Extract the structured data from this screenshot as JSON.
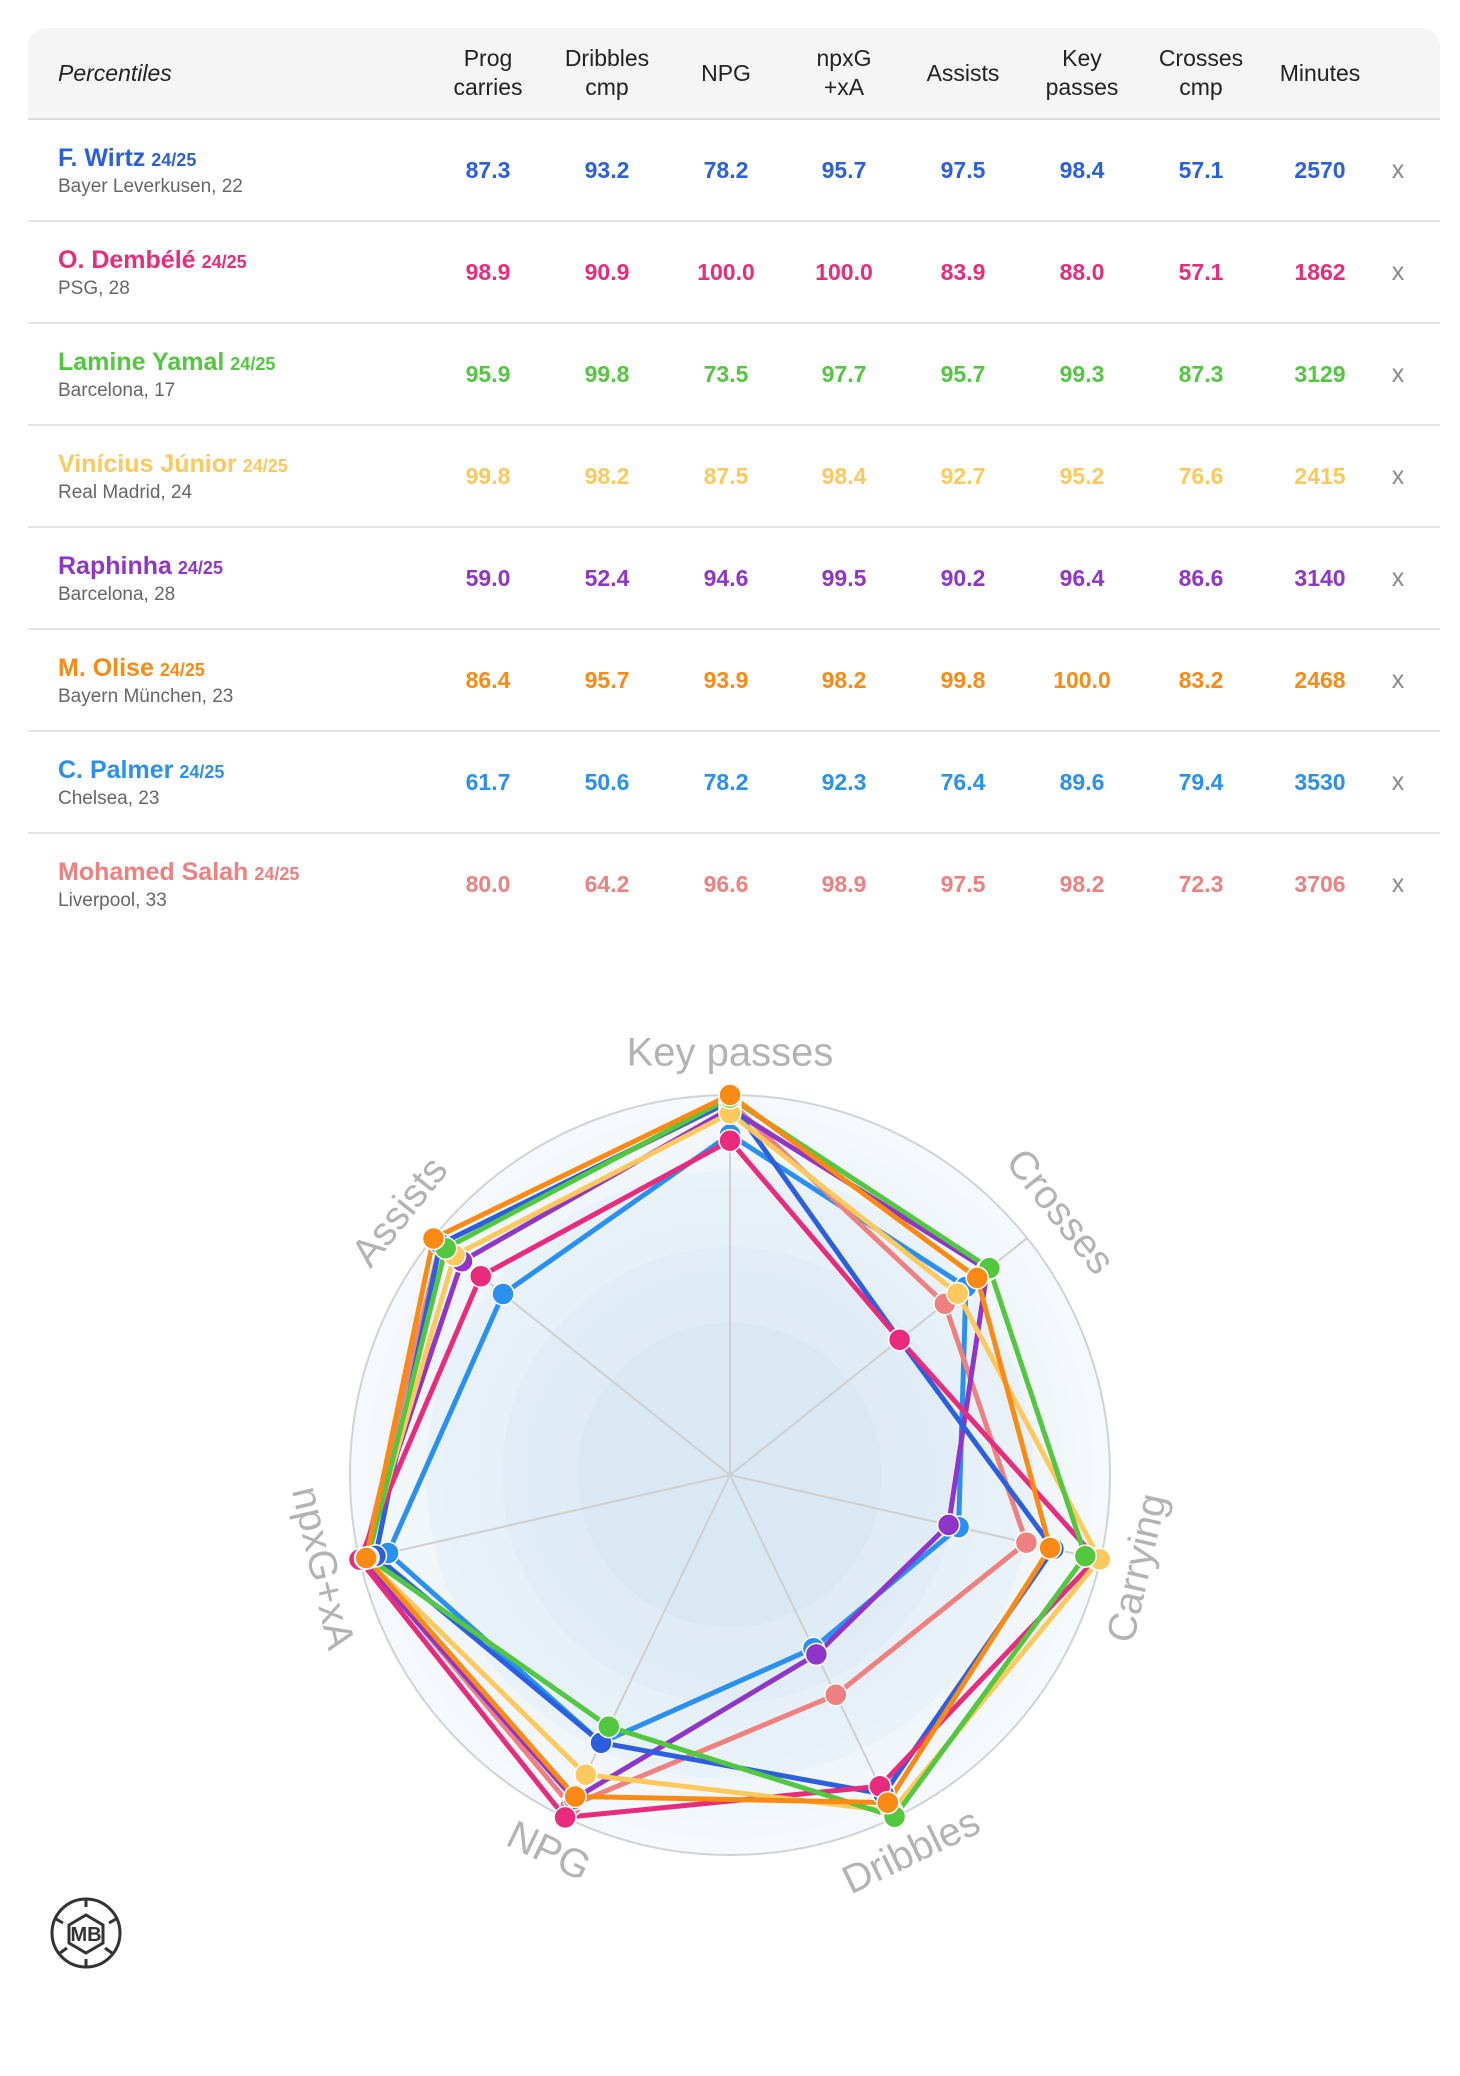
{
  "table": {
    "header_label": "Percentiles",
    "columns": [
      "Prog\ncarries",
      "Dribbles\ncmp",
      "NPG",
      "npxG\n+xA",
      "Assists",
      "Key\npasses",
      "Crosses\ncmp",
      "Minutes"
    ],
    "remove_label": "x",
    "players": [
      {
        "name": "F. Wirtz",
        "season": "24/25",
        "club": "Bayer Leverkusen, 22",
        "color": "#2b5fe0",
        "values": [
          "87.3",
          "93.2",
          "78.2",
          "95.7",
          "97.5",
          "98.4",
          "57.1",
          "2570"
        ]
      },
      {
        "name": "O. Dembélé",
        "season": "24/25",
        "club": "PSG, 28",
        "color": "#e82b7c",
        "values": [
          "98.9",
          "90.9",
          "100.0",
          "100.0",
          "83.9",
          "88.0",
          "57.1",
          "1862"
        ]
      },
      {
        "name": "Lamine Yamal",
        "season": "24/25",
        "club": "Barcelona, 17",
        "color": "#52c73f",
        "values": [
          "95.9",
          "99.8",
          "73.5",
          "97.7",
          "95.7",
          "99.3",
          "87.3",
          "3129"
        ]
      },
      {
        "name": "Vinícius Júnior",
        "season": "24/25",
        "club": "Real Madrid, 24",
        "color": "#fdc85c",
        "values": [
          "99.8",
          "98.2",
          "87.5",
          "98.4",
          "92.7",
          "95.2",
          "76.6",
          "2415"
        ]
      },
      {
        "name": "Raphinha",
        "season": "24/25",
        "club": "Barcelona, 28",
        "color": "#8f36c8",
        "values": [
          "59.0",
          "52.4",
          "94.6",
          "99.5",
          "90.2",
          "96.4",
          "86.6",
          "3140"
        ]
      },
      {
        "name": "M. Olise",
        "season": "24/25",
        "club": "Bayern München, 23",
        "color": "#fb8a14",
        "values": [
          "86.4",
          "95.7",
          "93.9",
          "98.2",
          "99.8",
          "100.0",
          "83.2",
          "2468"
        ]
      },
      {
        "name": "C. Palmer",
        "season": "24/25",
        "club": "Chelsea, 23",
        "color": "#2a90ef",
        "values": [
          "61.7",
          "50.6",
          "78.2",
          "92.3",
          "76.4",
          "89.6",
          "79.4",
          "3530"
        ]
      },
      {
        "name": "Mohamed Salah",
        "season": "24/25",
        "club": "Liverpool, 33",
        "color": "#ef8080",
        "values": [
          "80.0",
          "64.2",
          "96.6",
          "98.9",
          "97.5",
          "98.2",
          "72.3",
          "3706"
        ]
      }
    ]
  },
  "chart_data": {
    "type": "radar",
    "axes": [
      "Key passes",
      "Crosses",
      "Carrying",
      "Dribbles",
      "NPG",
      "npxG+xA",
      "Assists"
    ],
    "range": [
      0,
      100
    ],
    "series": [
      {
        "name": "F. Wirtz",
        "color": "#2b5fe0",
        "values": [
          98.4,
          57.1,
          87.3,
          93.2,
          78.2,
          95.7,
          97.5
        ]
      },
      {
        "name": "O. Dembélé",
        "color": "#e82b7c",
        "values": [
          88.0,
          57.1,
          98.9,
          90.9,
          100.0,
          100.0,
          83.9
        ]
      },
      {
        "name": "Lamine Yamal",
        "color": "#52c73f",
        "values": [
          99.3,
          87.3,
          95.9,
          99.8,
          73.5,
          97.7,
          95.7
        ]
      },
      {
        "name": "Vinícius Júnior",
        "color": "#fdc85c",
        "values": [
          95.2,
          76.6,
          99.8,
          98.2,
          87.5,
          98.4,
          92.7
        ]
      },
      {
        "name": "Raphinha",
        "color": "#8f36c8",
        "values": [
          96.4,
          86.6,
          59.0,
          52.4,
          94.6,
          99.5,
          90.2
        ]
      },
      {
        "name": "M. Olise",
        "color": "#fb8a14",
        "values": [
          100.0,
          83.2,
          86.4,
          95.7,
          93.9,
          98.2,
          99.8
        ]
      },
      {
        "name": "C. Palmer",
        "color": "#2a90ef",
        "values": [
          89.6,
          79.4,
          61.7,
          50.6,
          78.2,
          92.3,
          76.4
        ]
      },
      {
        "name": "Mohamed Salah",
        "color": "#ef8080",
        "values": [
          98.2,
          72.3,
          80.0,
          64.2,
          96.6,
          98.9,
          97.5
        ]
      }
    ],
    "draw_order": [
      6,
      7,
      4,
      0,
      1,
      3,
      2,
      5
    ],
    "grid": true,
    "legend": "none"
  },
  "logo": {
    "text": "MB"
  }
}
